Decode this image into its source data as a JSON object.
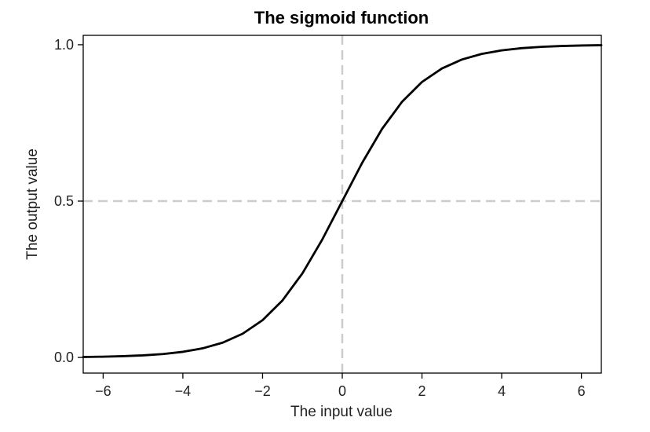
{
  "chart_data": {
    "type": "line",
    "title": "The sigmoid function",
    "xlabel": "The input value",
    "ylabel": "The output value",
    "xlim": [
      -6.5,
      6.5
    ],
    "ylim": [
      -0.05,
      1.03
    ],
    "x_ticks": [
      -6,
      -4,
      -2,
      0,
      2,
      4,
      6
    ],
    "x_tick_labels": [
      "−6",
      "−4",
      "−2",
      "0",
      "2",
      "4",
      "6"
    ],
    "y_ticks": [
      0.0,
      0.5,
      1.0
    ],
    "y_tick_labels": [
      "0.0",
      "0.5",
      "1.0"
    ],
    "grid": false,
    "reference_lines": [
      {
        "orientation": "vertical",
        "value": 0,
        "style": "dashed",
        "color": "#cccccc"
      },
      {
        "orientation": "horizontal",
        "value": 0.5,
        "style": "dashed",
        "color": "#cccccc"
      }
    ],
    "series": [
      {
        "color": "#000000",
        "x": [
          -6.5,
          -6,
          -5.5,
          -5,
          -4.5,
          -4,
          -3.5,
          -3,
          -2.5,
          -2,
          -1.5,
          -1,
          -0.5,
          0,
          0.5,
          1,
          1.5,
          2,
          2.5,
          3,
          3.5,
          4,
          4.5,
          5,
          5.5,
          6,
          6.5
        ],
        "y": [
          0.0015,
          0.0025,
          0.0041,
          0.0067,
          0.011,
          0.018,
          0.0293,
          0.0474,
          0.0759,
          0.1192,
          0.1824,
          0.2689,
          0.3775,
          0.5,
          0.6225,
          0.7311,
          0.8176,
          0.8808,
          0.9241,
          0.9526,
          0.9707,
          0.982,
          0.989,
          0.9933,
          0.9959,
          0.9975,
          0.9985
        ]
      }
    ]
  }
}
